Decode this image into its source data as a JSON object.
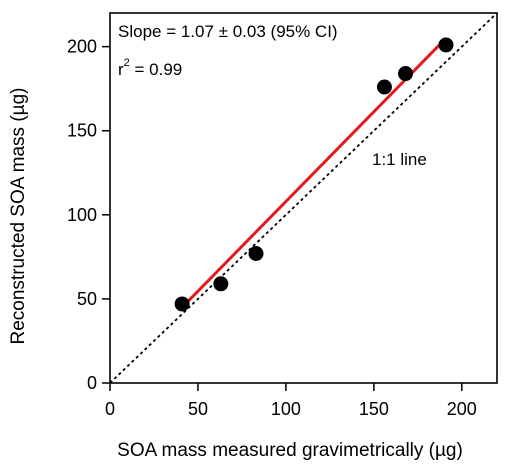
{
  "chart_data": {
    "type": "scatter",
    "xlabel": "SOA mass measured gravimetrically (µg)",
    "ylabel": "Reconstructed SOA mass (µg)",
    "xlim": [
      0,
      220
    ],
    "ylim": [
      0,
      220
    ],
    "xticks": [
      0,
      50,
      100,
      150,
      200
    ],
    "yticks": [
      0,
      50,
      100,
      150,
      200
    ],
    "grid": false,
    "annotations": {
      "slope": "Slope = 1.07 ± 0.03 (95% CI)",
      "r2_prefix": "r",
      "r2_exp": "2",
      "r2_value": " = 0.99",
      "one_to_one": "1:1 line"
    },
    "points": [
      {
        "x": 41,
        "y": 47
      },
      {
        "x": 63,
        "y": 59
      },
      {
        "x": 83,
        "y": 77
      },
      {
        "x": 156,
        "y": 176
      },
      {
        "x": 168,
        "y": 184
      },
      {
        "x": 191,
        "y": 201
      }
    ],
    "fit": {
      "x": [
        41,
        191
      ],
      "y": [
        45,
        205
      ]
    },
    "identity": {
      "x": [
        0,
        220
      ],
      "y": [
        0,
        220
      ]
    },
    "colors": {
      "points": "#000000",
      "fit_line": "#e31a1c",
      "identity_line": "#000000"
    }
  }
}
